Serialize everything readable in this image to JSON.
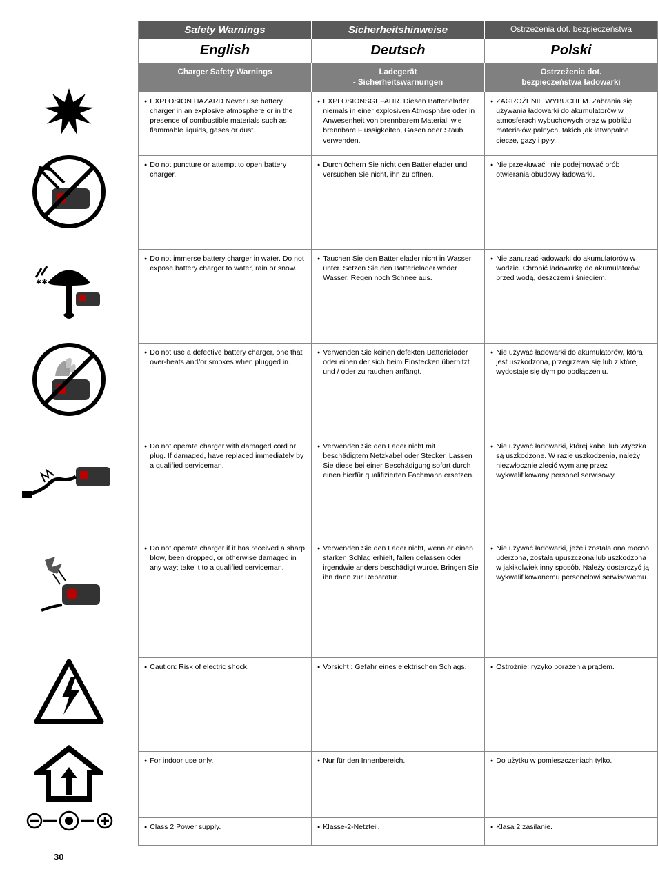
{
  "page_number": "30",
  "header": {
    "col1": "Safety Warnings",
    "col2": "Sicherheitshinweise",
    "col3": "Ostrzeżenia dot. bezpieczeństwa"
  },
  "languages": {
    "en": "English",
    "de": "Deutsch",
    "pl": "Polski"
  },
  "subheader": {
    "en": "Charger Safety Warnings",
    "de": "Ladegerät\n- Sicherheitswarnungen",
    "pl": "Ostrzeżenia dot.\nbezpieczeństwa ładowarki"
  },
  "icon_heights": [
    92,
    136,
    136,
    136,
    148,
    172,
    136,
    96,
    40
  ],
  "rows": [
    {
      "en": "EXPLOSION HAZARD Never use battery charger in an explosive atmosphere or in the presence of combustible materials such as flammable liquids, gases or dust.",
      "de": "EXPLOSIONSGEFAHR. Diesen Batterielader niemals in einer explosiven Atmosphäre oder in Anwesenheit von brennbarem Material, wie brennbare Flüssigkeiten, Gasen oder Staub verwenden.",
      "pl": "ZAGROŻENIE WYBUCHEM. Zabrania się używania ładowarki do akumulatorów w atmosferach wybuchowych oraz w pobliżu materiałów palnych, takich jak łatwopalne ciecze, gazy i pyły."
    },
    {
      "en": "Do not puncture or attempt to open battery charger.",
      "de": "Durchlöchern Sie nicht den Batterielader und versuchen Sie nicht, ihn zu öffnen.",
      "pl": "Nie przekłuwać i nie podejmować prób otwierania obudowy ładowarki."
    },
    {
      "en": "Do not immerse battery charger in water. Do not expose battery charger to water, rain or snow.",
      "de": "Tauchen Sie den Batterielader nicht in Wasser unter. Setzen Sie den Batterielader weder Wasser, Regen noch Schnee aus.",
      "pl": "Nie zanurzać ładowarki do akumulatorów w wodzie. Chronić ładowarkę do akumulatorów przed wodą, deszczem i śniegiem."
    },
    {
      "en": "Do not use a defective battery charger, one that over-heats and/or smokes when plugged in.",
      "de": "Verwenden Sie keinen defekten Batterielader oder einen der sich beim Einstecken überhitzt und / oder zu rauchen anfängt.",
      "pl": "Nie używać ładowarki do akumulatorów, która jest uszkodzona, przegrzewa się lub z której wydostaje się dym po podłączeniu."
    },
    {
      "en": "Do not operate charger with damaged cord or plug. If damaged, have replaced immediately by a qualified serviceman.",
      "de": "Verwenden Sie den Lader nicht mit beschädigtem Netzkabel oder Stecker. Lassen Sie diese bei einer Beschädigung sofort durch einen hierfür qualifizierten Fachmann ersetzen.",
      "pl": "Nie używać ładowarki, której kabel lub wtyczka są uszkodzone. W razie uszkodzenia, należy niezwłocznie zlecić wymianę przez wykwalifikowany personel serwisowy"
    },
    {
      "en": "Do not operate charger if it has received a sharp blow, been dropped, or otherwise damaged in any way; take it to a qualified serviceman.",
      "de": "Verwenden Sie den Lader nicht, wenn er einen starken Schlag erhielt, fallen gelassen oder irgendwie anders beschädigt wurde. Bringen Sie ihn dann zur Reparatur.",
      "pl": "Nie używać ładowarki, jeżeli została ona mocno uderzona, została upuszczona lub uszkodzona w jakikolwiek inny sposób. Należy dostarczyć ją wykwalifikowanemu personelowi serwisowemu."
    },
    {
      "en": "Caution: Risk of electric shock.",
      "de": "Vorsicht : Gefahr eines elektrischen Schlags.",
      "pl": "Ostrożnie:  ryzyko porażenia prądem."
    },
    {
      "en": "For indoor use only.",
      "de": "Nur für den Innenbereich.",
      "pl": "Do użytku w pomieszczeniach tylko."
    },
    {
      "en": "Class 2 Power supply.",
      "de": "Klasse-2-Netzteil.",
      "pl": "Klasa 2 zasilanie."
    }
  ]
}
